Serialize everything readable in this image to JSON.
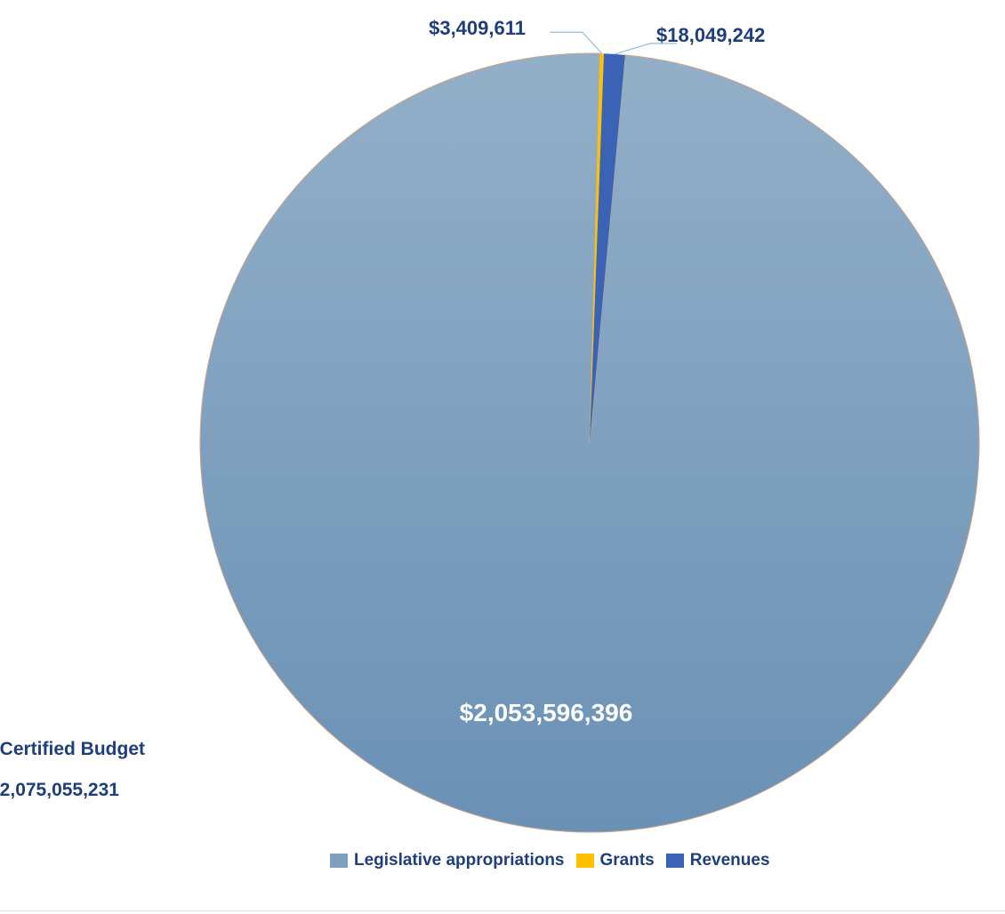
{
  "chart_data": {
    "type": "pie",
    "slices": [
      {
        "name": "Legislative appropriations",
        "value": 2053596396,
        "label": "$2,053,596,396",
        "color": "#7e9fbf"
      },
      {
        "name": "Grants",
        "value": 3409611,
        "label": "$3,409,611",
        "color": "#ffc000"
      },
      {
        "name": "Revenues",
        "value": 18049242,
        "label": "$18,049,242",
        "color": "#3a63b5"
      }
    ],
    "legend_position": "bottom",
    "total_label": "l Certified Budget",
    "total_value": "$2,075,055,231"
  },
  "colors": {
    "label_text": "#1f3e7a",
    "leader_line": "#9bb8d6",
    "pie_gradient_top": "#93afc8",
    "pie_gradient_bottom": "#6a91b5"
  }
}
